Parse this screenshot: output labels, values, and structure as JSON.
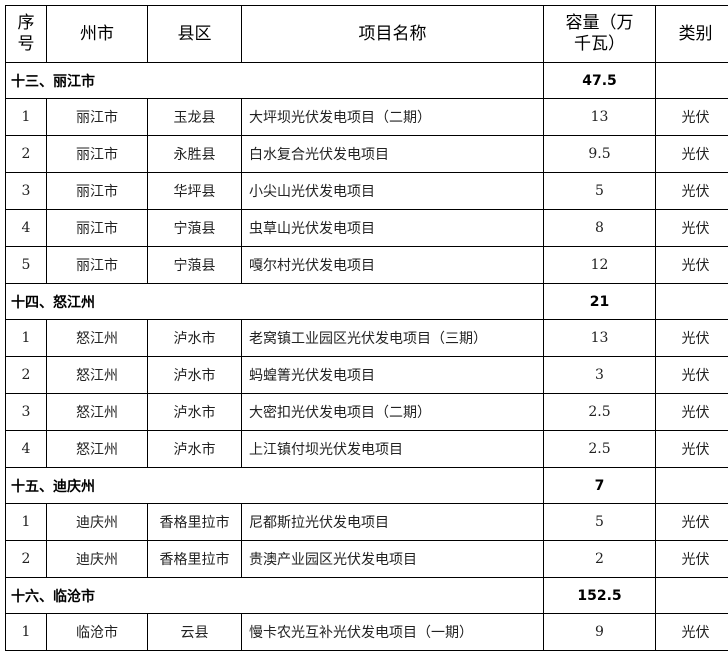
{
  "header": {
    "seq": "序号",
    "prefecture": "州市",
    "county": "县区",
    "project": "项目名称",
    "capacity": "容量（万千瓦）",
    "type": "类别"
  },
  "sections": [
    {
      "title": "十三、丽江市",
      "total": "47.5",
      "rows": [
        {
          "seq": "1",
          "prefecture": "丽江市",
          "county": "玉龙县",
          "project": "大坪坝光伏发电项目（二期）",
          "capacity": "13",
          "type": "光伏"
        },
        {
          "seq": "2",
          "prefecture": "丽江市",
          "county": "永胜县",
          "project": "白水复合光伏发电项目",
          "capacity": "9.5",
          "type": "光伏"
        },
        {
          "seq": "3",
          "prefecture": "丽江市",
          "county": "华坪县",
          "project": "小尖山光伏发电项目",
          "capacity": "5",
          "type": "光伏"
        },
        {
          "seq": "4",
          "prefecture": "丽江市",
          "county": "宁蒗县",
          "project": "虫草山光伏发电项目",
          "capacity": "8",
          "type": "光伏"
        },
        {
          "seq": "5",
          "prefecture": "丽江市",
          "county": "宁蒗县",
          "project": "嘎尔村光伏发电项目",
          "capacity": "12",
          "type": "光伏"
        }
      ]
    },
    {
      "title": "十四、怒江州",
      "total": "21",
      "rows": [
        {
          "seq": "1",
          "prefecture": "怒江州",
          "county": "泸水市",
          "project": "老窝镇工业园区光伏发电项目（三期）",
          "capacity": "13",
          "type": "光伏"
        },
        {
          "seq": "2",
          "prefecture": "怒江州",
          "county": "泸水市",
          "project": "蚂蝗箐光伏发电项目",
          "capacity": "3",
          "type": "光伏"
        },
        {
          "seq": "3",
          "prefecture": "怒江州",
          "county": "泸水市",
          "project": "大密扣光伏发电项目（二期）",
          "capacity": "2.5",
          "type": "光伏"
        },
        {
          "seq": "4",
          "prefecture": "怒江州",
          "county": "泸水市",
          "project": "上江镇付坝光伏发电项目",
          "capacity": "2.5",
          "type": "光伏"
        }
      ]
    },
    {
      "title": "十五、迪庆州",
      "total": "7",
      "rows": [
        {
          "seq": "1",
          "prefecture": "迪庆州",
          "county": "香格里拉市",
          "project": "尼都斯拉光伏发电项目",
          "capacity": "5",
          "type": "光伏"
        },
        {
          "seq": "2",
          "prefecture": "迪庆州",
          "county": "香格里拉市",
          "project": "贵澳产业园区光伏发电项目",
          "capacity": "2",
          "type": "光伏"
        }
      ]
    },
    {
      "title": "十六、临沧市",
      "total": "152.5",
      "rows": [
        {
          "seq": "1",
          "prefecture": "临沧市",
          "county": "云县",
          "project": "慢卡农光互补光伏发电项目（一期）",
          "capacity": "9",
          "type": "光伏"
        }
      ]
    }
  ]
}
